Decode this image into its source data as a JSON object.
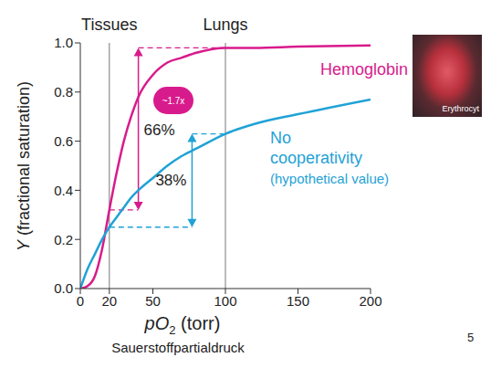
{
  "chart_data": {
    "type": "line",
    "xlabel": "pO2 (torr)",
    "xlabel_note": "Sauerstoffpartialdruck",
    "ylabel": "Y (fractional saturation)",
    "x": [
      0,
      5,
      10,
      15,
      20,
      25,
      30,
      35,
      40,
      50,
      60,
      70,
      80,
      100,
      120,
      150,
      200
    ],
    "series": [
      {
        "name": "Hemoglobin",
        "color": "#d81b8c",
        "values": [
          0,
          0.01,
          0.05,
          0.16,
          0.32,
          0.47,
          0.6,
          0.7,
          0.78,
          0.87,
          0.92,
          0.94,
          0.96,
          0.98,
          0.98,
          0.985,
          0.99
        ]
      },
      {
        "name": "No cooperativity",
        "annotation": "(hypothetical value)",
        "color": "#1fa2d6",
        "values": [
          0,
          0.08,
          0.14,
          0.2,
          0.25,
          0.29,
          0.33,
          0.37,
          0.4,
          0.45,
          0.5,
          0.54,
          0.57,
          0.63,
          0.67,
          0.71,
          0.77
        ]
      }
    ],
    "markers": [
      {
        "label": "Tissues",
        "x": 20
      },
      {
        "label": "Lungs",
        "x": 100
      }
    ],
    "ranges": [
      {
        "label": "66%",
        "x": 40,
        "from": 0.32,
        "to": 0.98,
        "color": "#d81b8c"
      },
      {
        "label": "38%",
        "x": 77,
        "from": 0.25,
        "to": 0.63,
        "color": "#1fa2d6"
      }
    ],
    "badge": "~1.7x",
    "image_caption": "Erythrocyt",
    "page_number": 5,
    "xlim": [
      0,
      200
    ],
    "xticks": [
      0,
      20,
      50,
      100,
      150,
      200
    ],
    "ylim": [
      0,
      1
    ],
    "yticks": [
      {
        "value": 0,
        "label": "0.0"
      },
      0.2,
      0.4,
      0.6,
      0.8,
      {
        "value": 1,
        "label": "1.0"
      }
    ],
    "grid": false
  }
}
